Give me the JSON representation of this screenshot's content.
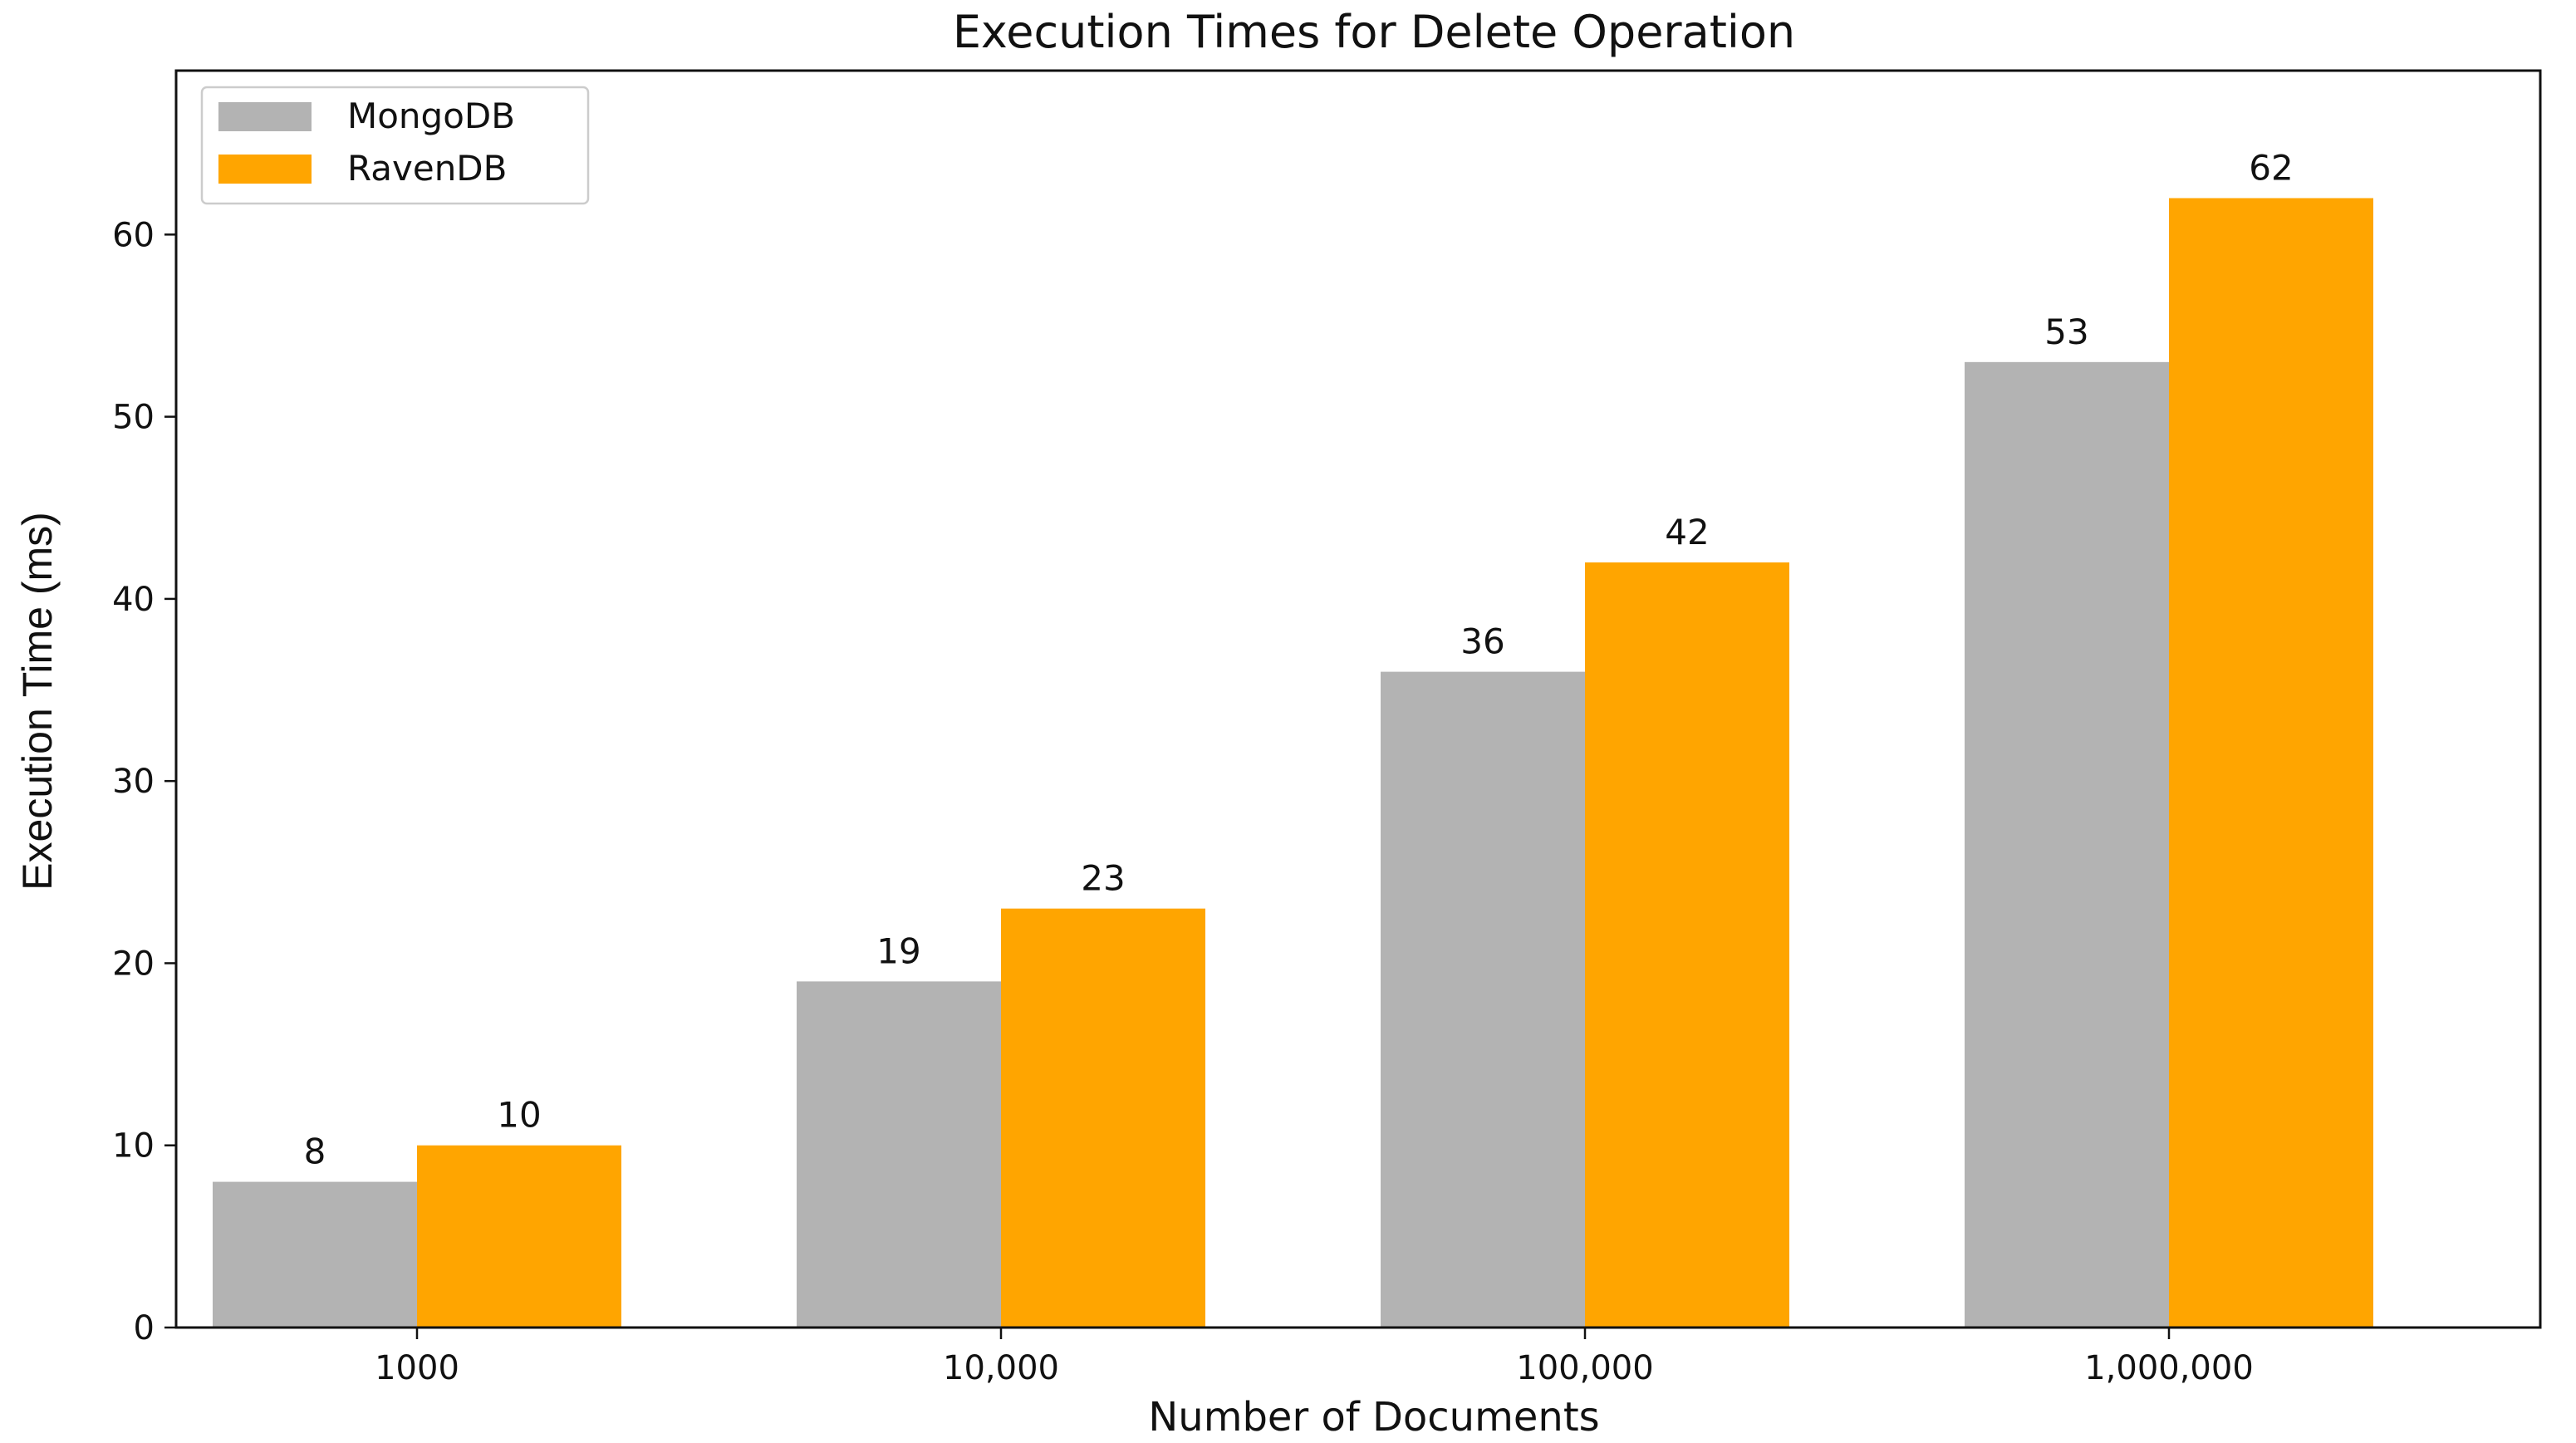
{
  "chart_data": {
    "type": "bar",
    "title": "Execution Times for Delete Operation",
    "xlabel": "Number of Documents",
    "ylabel": "Execution Time (ms)",
    "categories": [
      "1000",
      "10,000",
      "100,000",
      "1,000,000"
    ],
    "series": [
      {
        "name": "MongoDB",
        "values": [
          8,
          19,
          36,
          53
        ],
        "color": "#b3b3b3"
      },
      {
        "name": "RavenDB",
        "values": [
          10,
          23,
          42,
          62
        ],
        "color": "#ffa500"
      }
    ],
    "ylim": [
      0,
      69
    ],
    "yticks": [
      0,
      10,
      20,
      30,
      40,
      50,
      60
    ],
    "legend_position": "top-left",
    "grid": false,
    "data_labels": true
  }
}
